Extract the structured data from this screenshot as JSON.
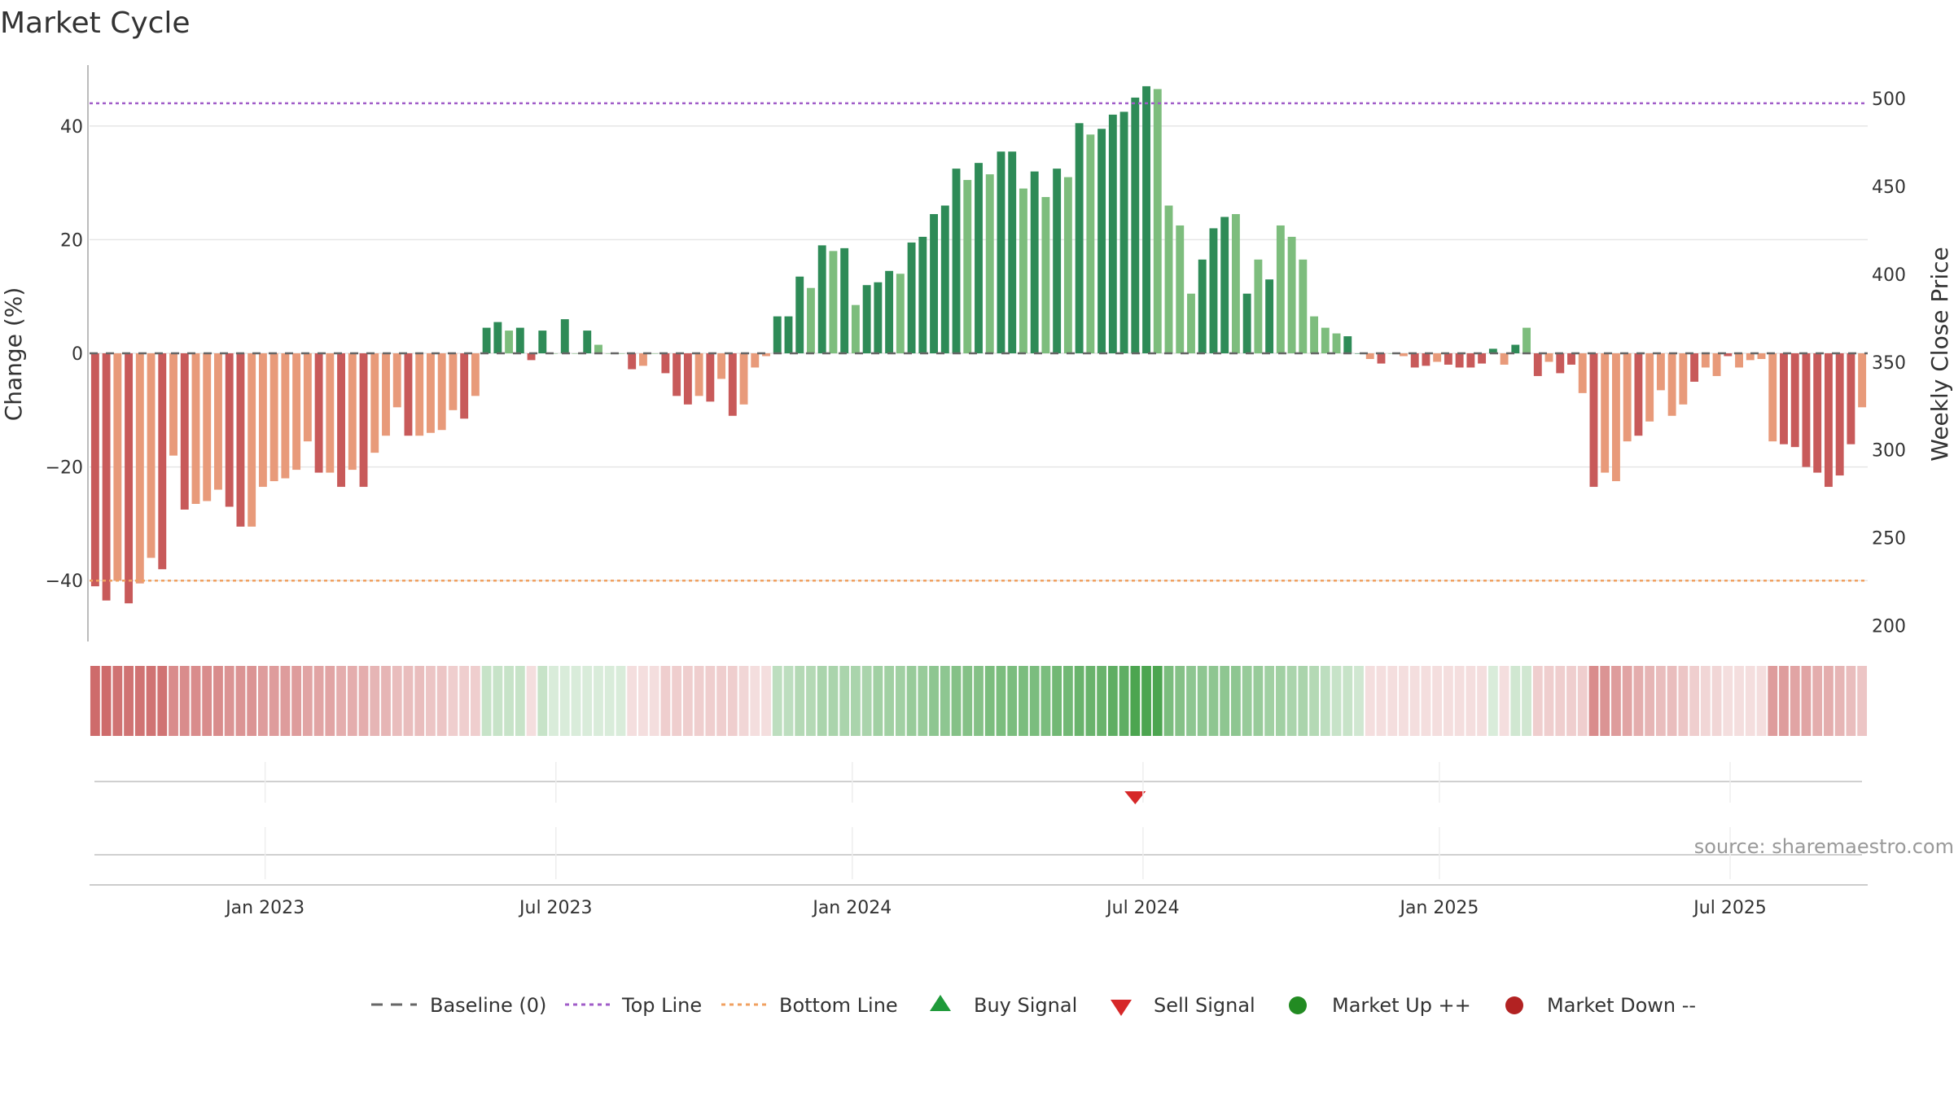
{
  "colors": {
    "up_dark": "#2e8b57",
    "up_light": "#7dbd7d",
    "down_dark": "#c85a5a",
    "down_light": "#e89a7a",
    "top_line": "#a05cc8",
    "bottom_line": "#f0a060",
    "baseline": "#666666",
    "buy": "#1f9a3a",
    "sell": "#d62728",
    "market_up": "#228b22",
    "market_down": "#b22222",
    "grid": "#e6e6e6"
  },
  "chart_data": {
    "type": "bar",
    "title": "Market Cycle",
    "ylabel": "Change (%)",
    "ylabel_right": "Weekly Close Price",
    "ylim": [
      -51,
      51
    ],
    "yticks": [
      40,
      20,
      0,
      -20,
      -40
    ],
    "ytick_labels": [
      "40",
      "20",
      "0",
      "−20",
      "−40"
    ],
    "ylim_right": [
      190,
      520
    ],
    "yticks_right": [
      500,
      450,
      400,
      350,
      300,
      250,
      200
    ],
    "ytick_labels_right": [
      "500",
      "450",
      "400",
      "350",
      "300",
      "250",
      "200"
    ],
    "top_line": 44,
    "bottom_line": -40,
    "x_tick_labels": [
      "Jan 2023",
      "Jul 2023",
      "Jan 2024",
      "Jul 2024",
      "Jan 2025",
      "Jul 2025"
    ],
    "x_tick_index": [
      15.2,
      41.2,
      67.7,
      93.7,
      120.2,
      146.2
    ],
    "grid": true,
    "legend_position": "bottom",
    "values": [
      -41,
      -43.5,
      -40,
      -44,
      -40.5,
      -36,
      -38,
      -18,
      -27.5,
      -26.5,
      -26,
      -24,
      -27,
      -30.5,
      -30.5,
      -23.5,
      -22.5,
      -22,
      -20.5,
      -15.5,
      -21,
      -21,
      -23.5,
      -20.5,
      -23.5,
      -17.5,
      -14.5,
      -9.5,
      -14.5,
      -14.5,
      -14,
      -13.5,
      -10,
      -11.5,
      -7.5,
      4.5,
      5.5,
      4,
      4.5,
      -1.2,
      4,
      0,
      6,
      0,
      4,
      1.5,
      0,
      0,
      -2.8,
      -2.2,
      0,
      -3.5,
      -7.5,
      -9,
      -7.5,
      -8.5,
      -4.5,
      -11,
      -9,
      -2.5,
      -0.5,
      6.5,
      6.5,
      13.5,
      11.5,
      19,
      18,
      18.5,
      8.5,
      12,
      12.5,
      14.5,
      14,
      19.5,
      20.5,
      24.5,
      26,
      32.5,
      30.5,
      33.5,
      31.5,
      35.5,
      35.5,
      29,
      32,
      27.5,
      32.5,
      31,
      40.5,
      38.5,
      39.5,
      42,
      42.5,
      45,
      47,
      46.5,
      26,
      22.5,
      10.5,
      16.5,
      22,
      24,
      24.5,
      10.5,
      16.5,
      13,
      22.5,
      20.5,
      16.5,
      6.5,
      4.5,
      3.5,
      3,
      0,
      -1,
      -1.8,
      0,
      -0.5,
      -2.5,
      -2.2,
      -1.5,
      -2,
      -2.5,
      -2.5,
      -1.8,
      0.8,
      -2,
      1.5,
      4.5,
      -4,
      -1.5,
      -3.5,
      -2,
      -7,
      -23.5,
      -21,
      -22.5,
      -15.5,
      -14.5,
      -12,
      -6.5,
      -11,
      -9,
      -5,
      -2.5,
      -4,
      -0.5,
      -2.5,
      -1.2,
      -1,
      -15.5,
      -16,
      -16.5,
      -20,
      -21,
      -23.5,
      -21.5,
      -16,
      -9.5
    ],
    "shades": [
      1,
      1,
      0,
      1,
      0,
      0,
      1,
      0,
      1,
      0,
      0,
      0,
      1,
      1,
      0,
      0,
      0,
      0,
      0,
      0,
      1,
      0,
      1,
      0,
      1,
      0,
      0,
      0,
      1,
      0,
      0,
      0,
      0,
      1,
      0,
      1,
      1,
      0,
      1,
      1,
      1,
      0,
      1,
      0,
      1,
      0,
      0,
      0,
      1,
      0,
      0,
      1,
      1,
      1,
      0,
      1,
      0,
      1,
      0,
      0,
      0,
      1,
      1,
      1,
      0,
      1,
      0,
      1,
      0,
      1,
      1,
      1,
      0,
      1,
      1,
      1,
      1,
      1,
      0,
      1,
      0,
      1,
      1,
      0,
      1,
      0,
      1,
      0,
      1,
      0,
      1,
      1,
      1,
      1,
      1,
      0,
      0,
      0,
      0,
      1,
      1,
      1,
      0,
      1,
      0,
      1,
      0,
      0,
      0,
      0,
      0,
      0,
      1,
      1,
      0,
      1,
      0,
      0,
      1,
      1,
      0,
      1,
      1,
      1,
      1,
      1,
      0,
      1,
      0,
      1,
      0,
      1,
      1,
      0,
      1,
      0,
      0,
      0,
      1,
      0,
      0,
      0,
      0,
      1,
      0,
      0,
      1,
      0,
      0,
      0,
      0,
      1,
      1,
      1,
      1,
      1,
      1,
      1,
      0,
      0
    ],
    "heat": [
      -0.9,
      -0.9,
      -0.85,
      -0.85,
      -0.85,
      -0.85,
      -0.85,
      -0.7,
      -0.7,
      -0.7,
      -0.7,
      -0.7,
      -0.65,
      -0.65,
      -0.65,
      -0.6,
      -0.6,
      -0.6,
      -0.6,
      -0.55,
      -0.55,
      -0.55,
      -0.5,
      -0.5,
      -0.5,
      -0.45,
      -0.45,
      -0.4,
      -0.4,
      -0.4,
      -0.35,
      -0.35,
      -0.3,
      -0.3,
      -0.3,
      0.3,
      0.3,
      0.3,
      0.3,
      -0.2,
      0.3,
      0.2,
      0.2,
      0.2,
      0.2,
      0.2,
      0.2,
      0.2,
      -0.2,
      -0.2,
      -0.2,
      -0.3,
      -0.3,
      -0.3,
      -0.3,
      -0.3,
      -0.3,
      -0.3,
      -0.25,
      -0.2,
      -0.2,
      0.35,
      0.35,
      0.4,
      0.4,
      0.45,
      0.45,
      0.45,
      0.45,
      0.45,
      0.5,
      0.5,
      0.5,
      0.55,
      0.55,
      0.6,
      0.6,
      0.65,
      0.65,
      0.65,
      0.7,
      0.7,
      0.7,
      0.7,
      0.7,
      0.7,
      0.75,
      0.75,
      0.8,
      0.8,
      0.8,
      0.85,
      0.85,
      0.95,
      0.95,
      0.95,
      0.7,
      0.65,
      0.6,
      0.6,
      0.6,
      0.6,
      0.6,
      0.55,
      0.55,
      0.5,
      0.5,
      0.45,
      0.45,
      0.4,
      0.35,
      0.3,
      0.3,
      0.25,
      -0.2,
      -0.2,
      -0.2,
      -0.2,
      -0.2,
      -0.2,
      -0.2,
      -0.2,
      -0.2,
      -0.2,
      -0.2,
      0.2,
      -0.2,
      0.25,
      0.25,
      -0.3,
      -0.3,
      -0.3,
      -0.3,
      -0.3,
      -0.7,
      -0.65,
      -0.6,
      -0.55,
      -0.5,
      -0.45,
      -0.4,
      -0.4,
      -0.35,
      -0.3,
      -0.25,
      -0.25,
      -0.2,
      -0.2,
      -0.2,
      -0.2,
      -0.6,
      -0.6,
      -0.55,
      -0.55,
      -0.5,
      -0.5,
      -0.45,
      -0.4,
      -0.35
    ],
    "sell_signals": [
      93
    ]
  },
  "legend": {
    "baseline": "Baseline (0)",
    "top_line": "Top Line",
    "bottom_line": "Bottom Line",
    "buy_signal": "Buy Signal",
    "sell_signal": "Sell Signal",
    "market_up": "Market Up ++",
    "market_down": "Market Down --"
  },
  "source": "source: sharemaestro.com"
}
